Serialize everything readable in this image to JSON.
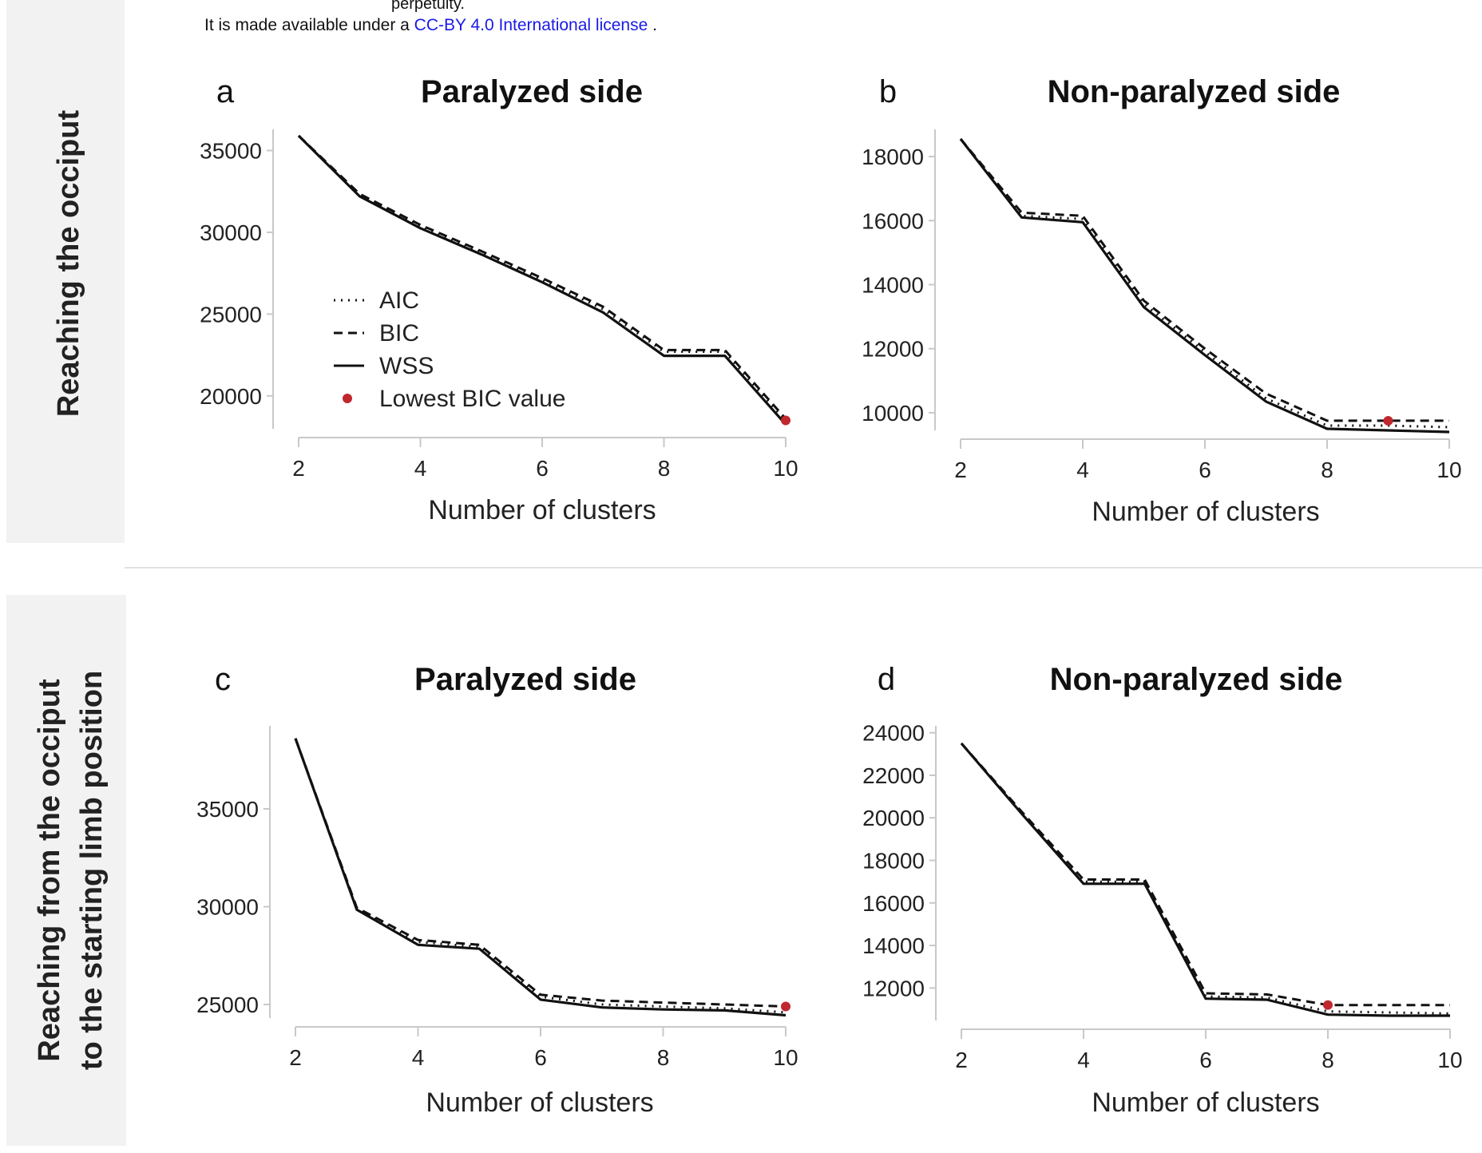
{
  "header": {
    "line1": "perpetuity.",
    "line2_prefix": "It is made available under a",
    "line2_link": "CC-BY 4.0 International license",
    "line2_suffix": "."
  },
  "row_labels": {
    "top": "Reaching the occiput",
    "bottom_line1": "Reaching from the occiput",
    "bottom_line2": "to the starting limb position"
  },
  "colors": {
    "lines": "#111111",
    "lowest_bic_marker": "#c0282d",
    "axis": "#c8c8c8",
    "row_band": "#f2f2f2"
  },
  "chart_data": [
    {
      "type": "line",
      "panel": "a",
      "title": "Paralyzed side",
      "xlabel": "Number of clusters",
      "ylabel": "",
      "xlim": [
        2,
        10
      ],
      "ylim": [
        17500,
        36000
      ],
      "xticks": [
        2,
        4,
        6,
        8,
        10
      ],
      "yticks": [
        20000,
        25000,
        30000,
        35000
      ],
      "x": [
        2,
        3,
        4,
        5,
        6,
        7,
        8,
        9,
        10
      ],
      "series": [
        {
          "name": "AIC",
          "style": "dotted",
          "values": [
            35900,
            32300,
            30350,
            28750,
            27100,
            25300,
            22700,
            22700,
            18450
          ]
        },
        {
          "name": "BIC",
          "style": "dashed",
          "values": [
            35900,
            32350,
            30450,
            28850,
            27200,
            25450,
            22800,
            22800,
            18600
          ]
        },
        {
          "name": "WSS",
          "style": "solid",
          "values": [
            35900,
            32200,
            30250,
            28650,
            26950,
            25100,
            22450,
            22450,
            18250
          ]
        }
      ],
      "lowest_bic": {
        "x": 10,
        "y": 18500
      },
      "legend": {
        "placement": "lower-left",
        "entries": [
          {
            "label": "AIC",
            "style": "dotted"
          },
          {
            "label": "BIC",
            "style": "dashed"
          },
          {
            "label": "WSS",
            "style": "solid"
          },
          {
            "label": "Lowest BIC value",
            "style": "marker"
          }
        ]
      },
      "grid": false
    },
    {
      "type": "line",
      "panel": "b",
      "title": "Non-paralyzed side",
      "xlabel": "Number of clusters",
      "ylabel": "",
      "xlim": [
        2,
        10
      ],
      "ylim": [
        9200,
        18700
      ],
      "xticks": [
        2,
        4,
        6,
        8,
        10
      ],
      "yticks": [
        10000,
        12000,
        14000,
        16000,
        18000
      ],
      "x": [
        2,
        3,
        4,
        5,
        6,
        7,
        8,
        9,
        10
      ],
      "series": [
        {
          "name": "AIC",
          "style": "dotted",
          "values": [
            18550,
            16150,
            16050,
            13400,
            11900,
            10450,
            9600,
            9600,
            9550
          ]
        },
        {
          "name": "BIC",
          "style": "dashed",
          "values": [
            18550,
            16250,
            16150,
            13500,
            12000,
            10600,
            9750,
            9750,
            9750
          ]
        },
        {
          "name": "WSS",
          "style": "solid",
          "values": [
            18550,
            16100,
            15950,
            13300,
            11800,
            10350,
            9500,
            9450,
            9400
          ]
        }
      ],
      "lowest_bic": {
        "x": 9,
        "y": 9750
      },
      "grid": false
    },
    {
      "type": "line",
      "panel": "c",
      "title": "Paralyzed side",
      "xlabel": "Number of clusters",
      "ylabel": "",
      "xlim": [
        2,
        10
      ],
      "ylim": [
        23900,
        39000
      ],
      "xticks": [
        2,
        4,
        6,
        8,
        10
      ],
      "yticks": [
        25000,
        30000,
        35000
      ],
      "x": [
        2,
        3,
        4,
        5,
        6,
        7,
        8,
        9,
        10
      ],
      "series": [
        {
          "name": "AIC",
          "style": "dotted",
          "values": [
            38600,
            29900,
            28200,
            27950,
            25400,
            25000,
            24900,
            24800,
            24600
          ]
        },
        {
          "name": "BIC",
          "style": "dashed",
          "values": [
            38600,
            29950,
            28300,
            28050,
            25500,
            25200,
            25100,
            25000,
            24900
          ]
        },
        {
          "name": "WSS",
          "style": "solid",
          "values": [
            38600,
            29850,
            28050,
            27850,
            25250,
            24850,
            24750,
            24700,
            24450
          ]
        }
      ],
      "lowest_bic": {
        "x": 10,
        "y": 24900
      },
      "grid": false
    },
    {
      "type": "line",
      "panel": "d",
      "title": "Non-paralyzed side",
      "xlabel": "Number of clusters",
      "ylabel": "",
      "xlim": [
        2,
        10
      ],
      "ylim": [
        10100,
        24100
      ],
      "xticks": [
        2,
        4,
        6,
        8,
        10
      ],
      "yticks": [
        12000,
        14000,
        16000,
        18000,
        20000,
        22000,
        24000
      ],
      "x": [
        2,
        3,
        4,
        5,
        6,
        7,
        8,
        9,
        10
      ],
      "series": [
        {
          "name": "AIC",
          "style": "dotted",
          "values": [
            23500,
            20200,
            17000,
            17000,
            11600,
            11550,
            10900,
            10850,
            10800
          ]
        },
        {
          "name": "BIC",
          "style": "dashed",
          "values": [
            23500,
            20250,
            17100,
            17100,
            11750,
            11700,
            11200,
            11200,
            11200
          ]
        },
        {
          "name": "WSS",
          "style": "solid",
          "values": [
            23500,
            20150,
            16900,
            16900,
            11500,
            11450,
            10750,
            10700,
            10700
          ]
        }
      ],
      "lowest_bic": {
        "x": 8,
        "y": 11200
      },
      "grid": false
    }
  ]
}
